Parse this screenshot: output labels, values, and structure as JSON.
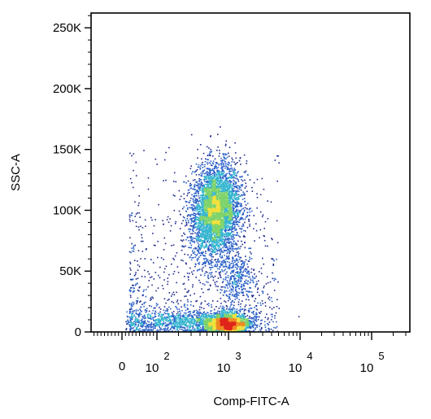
{
  "chart_data": {
    "type": "scatter",
    "title": "",
    "xlabel": "Comp-FITC-A",
    "ylabel": "SSC-A",
    "x_scale": "biexponential",
    "xlim": [
      -100,
      300000
    ],
    "ylim": [
      0,
      262144
    ],
    "grid": false,
    "legend": "none",
    "x_ticks": [
      {
        "value": 0,
        "base": "0",
        "exp": ""
      },
      {
        "value": 100,
        "base": "10",
        "exp": "2"
      },
      {
        "value": 1000,
        "base": "10",
        "exp": "3"
      },
      {
        "value": 10000,
        "base": "10",
        "exp": "4"
      },
      {
        "value": 100000,
        "base": "10",
        "exp": "5"
      }
    ],
    "y_ticks": [
      {
        "value": 0,
        "label": "0"
      },
      {
        "value": 50000,
        "label": "50K"
      },
      {
        "value": 100000,
        "label": "100K"
      },
      {
        "value": 150000,
        "label": "150K"
      },
      {
        "value": 200000,
        "label": "200K"
      },
      {
        "value": 250000,
        "label": "250K"
      }
    ],
    "populations": [
      {
        "name": "",
        "x_center": 650,
        "y_center": 100000,
        "x_spread_decades": 0.17,
        "y_spread": 19000,
        "events": 4200
      },
      {
        "name": "",
        "x_center": 950,
        "y_center": 7000,
        "x_spread_decades": 0.16,
        "y_spread": 4500,
        "events": 2400
      },
      {
        "name": "",
        "x_center": 180,
        "y_center": 9000,
        "x_spread_decades": 0.45,
        "y_spread": 5000,
        "events": 900
      },
      {
        "name": "",
        "x_center": 1300,
        "y_center": 45000,
        "x_spread_decades": 0.12,
        "y_spread": 10000,
        "events": 350
      }
    ],
    "density_colors": [
      "#1e2a8c",
      "#2c62c8",
      "#35b5cf",
      "#7ed36a",
      "#f1e03c",
      "#f08a24",
      "#e0251b"
    ]
  }
}
